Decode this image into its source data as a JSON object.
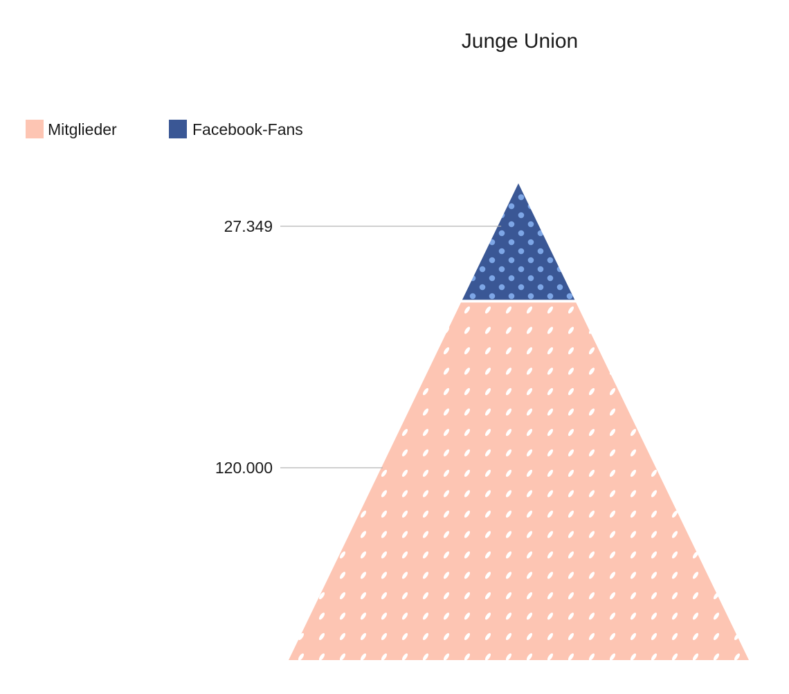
{
  "chart_data": {
    "type": "pyramid",
    "title": "Junge Union",
    "legend": {
      "placement": "top-left",
      "entries": [
        {
          "label": "Mitglieder",
          "color": "#fdc5b3"
        },
        {
          "label": "Facebook-Fans",
          "color": "#3a5795"
        }
      ]
    },
    "series": [
      {
        "name": "Facebook-Fans",
        "value": 27349,
        "value_label": "27.349",
        "color": "#3a5795",
        "pattern": "dots"
      },
      {
        "name": "Mitglieder",
        "value": 120000,
        "value_label": "120.000",
        "color": "#fdc5b3",
        "pattern": "dashes"
      }
    ],
    "grid": false
  }
}
